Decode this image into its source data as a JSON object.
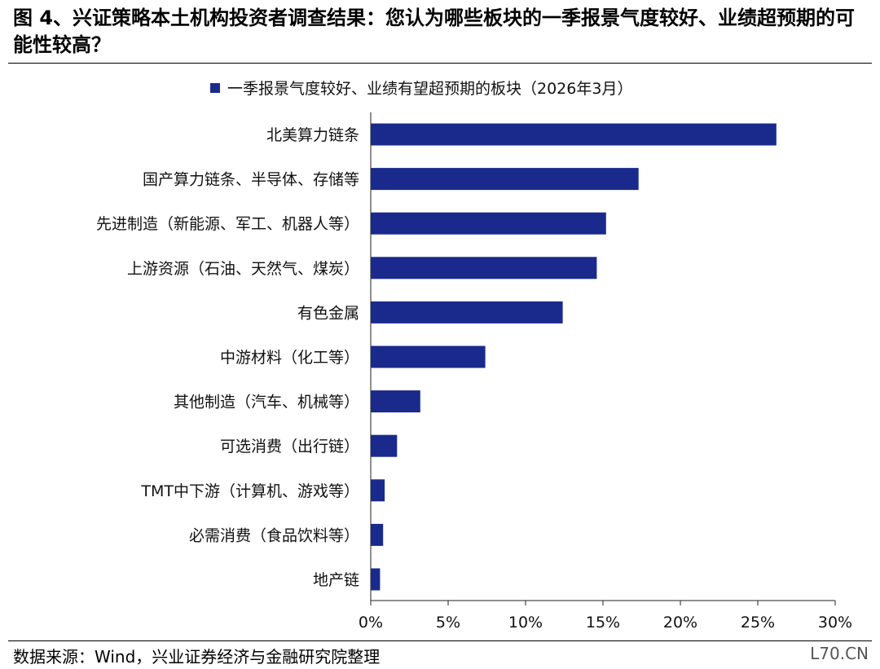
{
  "page": {
    "title": "图 4、兴证策略本土机构投资者调查结果：您认为哪些板块的一季报景气度较好、业绩超预期的可能性较高？",
    "source": "数据来源：Wind，兴业证券经济与金融研究院整理",
    "watermark": "L70.CN"
  },
  "chart_data": {
    "type": "bar",
    "orientation": "horizontal",
    "series": [
      {
        "name": "一季报景气度较好、业绩有望超预期的板块（2026年3月）",
        "color": "#1a2a8c",
        "values": [
          26.2,
          17.3,
          15.2,
          14.6,
          12.4,
          7.4,
          3.2,
          1.7,
          0.9,
          0.8,
          0.6
        ]
      }
    ],
    "categories": [
      "北美算力链条",
      "国产算力链条、半导体、存储等",
      "先进制造（新能源、军工、机器人等）",
      "上游资源（石油、天然气、煤炭）",
      "有色金属",
      "中游材料（化工等）",
      "其他制造（汽车、机械等）",
      "可选消费（出行链）",
      "TMT中下游（计算机、游戏等）",
      "必需消费（食品饮料等）",
      "地产链"
    ],
    "x_ticks": [
      "0%",
      "5%",
      "10%",
      "15%",
      "20%",
      "25%",
      "30%"
    ],
    "xlim": [
      0,
      30
    ],
    "legend_position": "top",
    "grid": false
  }
}
